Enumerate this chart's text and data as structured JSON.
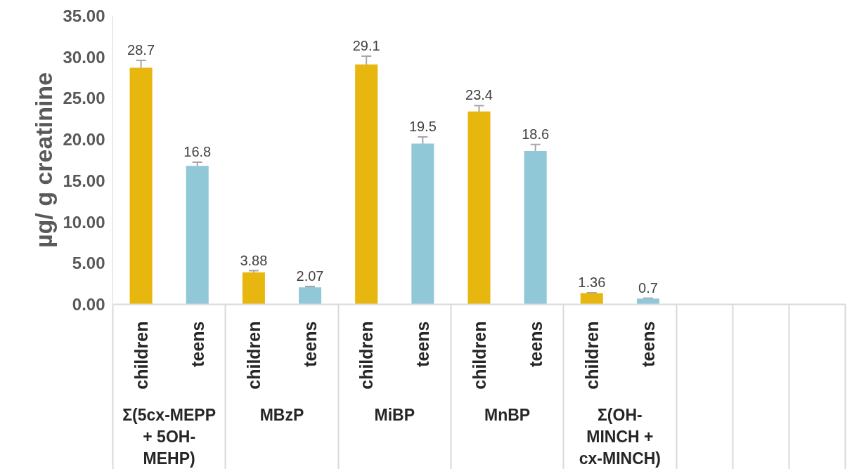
{
  "chart_data": {
    "type": "bar",
    "ylabel": "µg/ g creatinine",
    "categories": [
      "children",
      "teens",
      "children",
      "teens",
      "children",
      "teens",
      "children",
      "teens",
      "children",
      "teens",
      null,
      null,
      null
    ],
    "values": [
      28.7,
      16.8,
      3.88,
      2.07,
      29.1,
      19.5,
      23.4,
      18.6,
      1.36,
      0.7,
      null,
      null,
      null
    ],
    "colors": [
      "#e8b70f",
      "#90c8d8",
      "#e8b70f",
      "#90c8d8",
      "#e8b70f",
      "#90c8d8",
      "#e8b70f",
      "#90c8d8",
      "#e8b70f",
      "#90c8d8",
      null,
      null,
      null
    ],
    "errors": [
      0.9,
      0.45,
      0.2,
      0.1,
      1.0,
      0.8,
      0.7,
      0.8,
      0.05,
      0.05,
      null,
      null,
      null
    ],
    "data_labels": true,
    "annotations": [
      "Σ(5cx-MEPP\n+ 5OH-\nMEHP)",
      "MBzP",
      "MiBP",
      "MnBP",
      "Σ(OH-\nMINCH +\ncx-MINCH)"
    ],
    "ylim": [
      0,
      35
    ],
    "yticks": [
      {
        "value": 0,
        "label": "0.00"
      },
      {
        "value": 5,
        "label": "5.00"
      },
      {
        "value": 10,
        "label": "10.00"
      },
      {
        "value": 15,
        "label": "15.00"
      },
      {
        "value": 20,
        "label": "20.00"
      },
      {
        "value": 25,
        "label": "25.00"
      },
      {
        "value": 30,
        "label": "30.00"
      },
      {
        "value": 35,
        "label": "35.00"
      }
    ],
    "grid": false
  }
}
